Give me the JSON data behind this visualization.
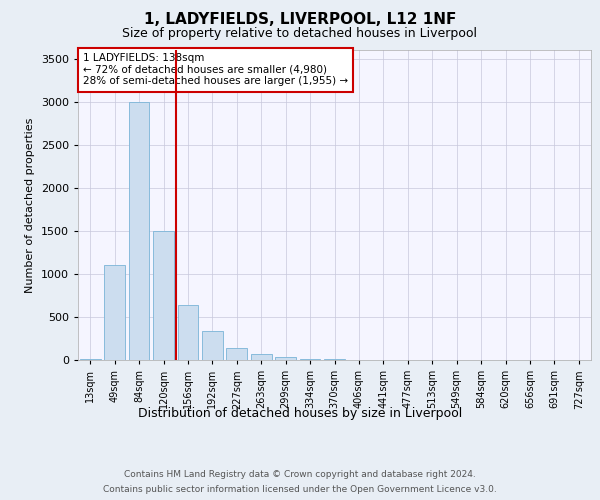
{
  "title1": "1, LADYFIELDS, LIVERPOOL, L12 1NF",
  "title2": "Size of property relative to detached houses in Liverpool",
  "xlabel": "Distribution of detached houses by size in Liverpool",
  "ylabel": "Number of detached properties",
  "categories": [
    "13sqm",
    "49sqm",
    "84sqm",
    "120sqm",
    "156sqm",
    "192sqm",
    "227sqm",
    "263sqm",
    "299sqm",
    "334sqm",
    "370sqm",
    "406sqm",
    "441sqm",
    "477sqm",
    "513sqm",
    "549sqm",
    "584sqm",
    "620sqm",
    "656sqm",
    "691sqm",
    "727sqm"
  ],
  "bar_heights": [
    10,
    1100,
    3000,
    1500,
    640,
    340,
    145,
    65,
    30,
    15,
    8,
    4,
    2,
    1,
    0,
    0,
    0,
    0,
    0,
    0,
    0
  ],
  "bar_color": "#ccddef",
  "bar_edge_color": "#7ab4d8",
  "vline_x_index": 3,
  "vline_color": "#cc0000",
  "annotation_text": "1 LADYFIELDS: 138sqm\n← 72% of detached houses are smaller (4,980)\n28% of semi-detached houses are larger (1,955) →",
  "annotation_box_color": "white",
  "annotation_box_edge_color": "#cc0000",
  "ylim": [
    0,
    3600
  ],
  "yticks": [
    0,
    500,
    1000,
    1500,
    2000,
    2500,
    3000,
    3500
  ],
  "footer1": "Contains HM Land Registry data © Crown copyright and database right 2024.",
  "footer2": "Contains public sector information licensed under the Open Government Licence v3.0.",
  "bg_color": "#e8eef5",
  "plot_bg_color": "#f5f5ff",
  "grid_color": "#c8c8dc",
  "title1_fontsize": 11,
  "title2_fontsize": 9,
  "ylabel_fontsize": 8,
  "xlabel_fontsize": 9,
  "tick_fontsize": 7,
  "footer_fontsize": 6.5
}
